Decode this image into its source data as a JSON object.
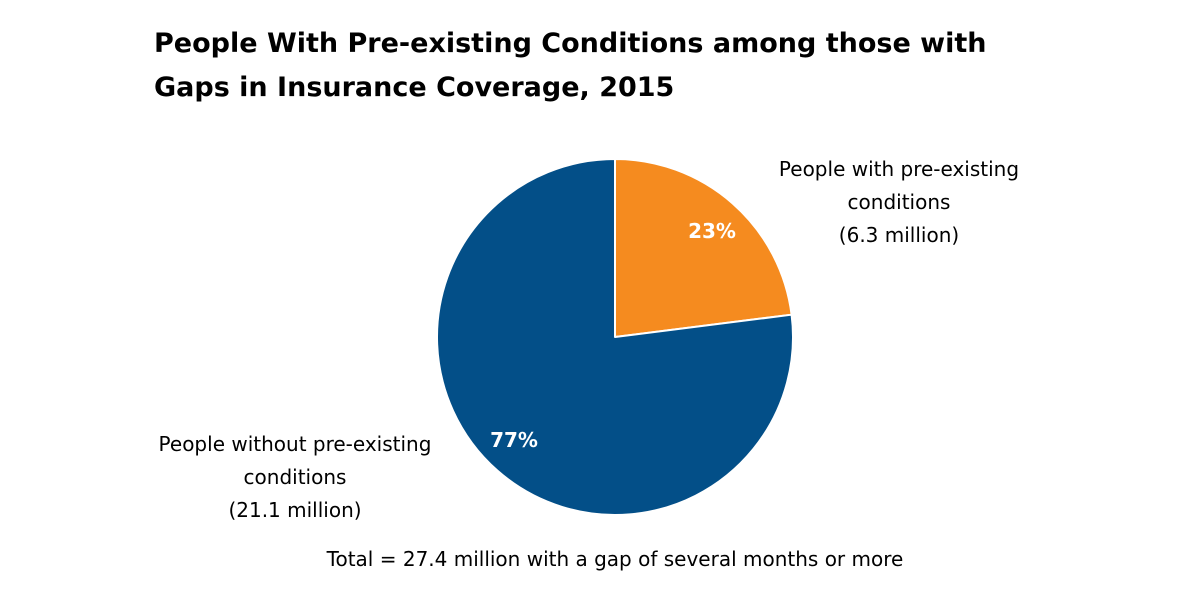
{
  "chart_data": {
    "type": "pie",
    "title_lines": [
      "People With Pre-existing Conditions among those with",
      "Gaps in Insurance Coverage, 2015"
    ],
    "slices": [
      {
        "percent": 23,
        "value_label": "23%",
        "label_lines": [
          "People with pre-existing",
          "conditions",
          "(6.3 million)"
        ],
        "color": "#F58B1F"
      },
      {
        "percent": 77,
        "value_label": "77%",
        "label_lines": [
          "People without pre-existing",
          "conditions",
          "(21.1 million)"
        ],
        "color": "#034F88"
      }
    ],
    "footnote": "Total = 27.4 million with a gap of several months or more"
  }
}
